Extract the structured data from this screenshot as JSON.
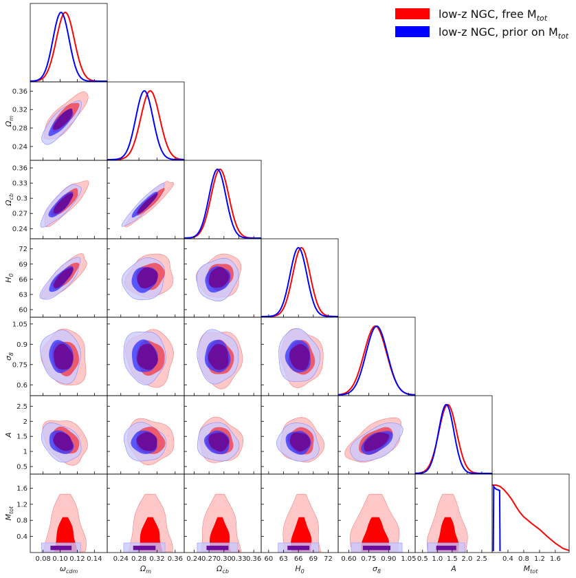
{
  "chart_data": {
    "type": "corner_plot",
    "title": "",
    "legend": {
      "placement": "top-right",
      "entries": [
        {
          "label": "low-z NGC, free M",
          "sub": "tot",
          "color": "#ff0000"
        },
        {
          "label": "low-z NGC, prior on M",
          "sub": "tot",
          "color": "#0000ff"
        }
      ]
    },
    "series": [
      {
        "name": "free_Mtot",
        "color": "#ff0000",
        "fill_outer": "#ffc8c8",
        "fill_inner": "#ff0000"
      },
      {
        "name": "prior_Mtot",
        "color": "#0000ff",
        "fill_outer": "#c8c8ff",
        "fill_inner": "#3a3aff"
      }
    ],
    "overlap_color": "#6a0d9a",
    "parameters": [
      {
        "name": "omega_cdm",
        "label": "ω",
        "sub": "cdm",
        "range": [
          0.065,
          0.155
        ],
        "ticks": [
          {
            "v": 0.08,
            "t": "0.08"
          },
          {
            "v": 0.1,
            "t": "0.10"
          },
          {
            "v": 0.12,
            "t": "0.12"
          },
          {
            "v": 0.14,
            "t": "0.14"
          }
        ],
        "mean_free": 0.106,
        "sd_free": 0.0105,
        "mean_prior": 0.101,
        "sd_prior": 0.0095
      },
      {
        "name": "Omega_m",
        "label": "Ω",
        "sub": "m",
        "range": [
          0.21,
          0.38
        ],
        "ticks": [
          {
            "v": 0.24,
            "t": "0.24"
          },
          {
            "v": 0.28,
            "t": "0.28"
          },
          {
            "v": 0.32,
            "t": "0.32"
          },
          {
            "v": 0.36,
            "t": "0.36"
          }
        ],
        "mean_free": 0.305,
        "sd_free": 0.021,
        "mean_prior": 0.292,
        "sd_prior": 0.019
      },
      {
        "name": "Omega_cb",
        "label": "Ω",
        "sub": "cb",
        "range": [
          0.22,
          0.375
        ],
        "ticks": [
          {
            "v": 0.24,
            "t": "0.24"
          },
          {
            "v": 0.27,
            "t": "0.27"
          },
          {
            "v": 0.3,
            "t": "0.30"
          },
          {
            "v": 0.33,
            "t": "0.33"
          },
          {
            "v": 0.36,
            "t": "0.36"
          }
        ],
        "yticks": [
          {
            "v": 0.24,
            "t": "0.24"
          },
          {
            "v": 0.27,
            "t": "0.27"
          },
          {
            "v": 0.3,
            "t": "0.3"
          },
          {
            "v": 0.33,
            "t": "0.33"
          },
          {
            "v": 0.36,
            "t": "0.36"
          }
        ],
        "mean_free": 0.292,
        "sd_free": 0.018,
        "mean_prior": 0.287,
        "sd_prior": 0.017
      },
      {
        "name": "H0",
        "label": "H",
        "sub": "0",
        "range": [
          58.5,
          74.0
        ],
        "ticks": [
          {
            "v": 60,
            "t": "60"
          },
          {
            "v": 63,
            "t": "63"
          },
          {
            "v": 66,
            "t": "66"
          },
          {
            "v": 69,
            "t": "69"
          },
          {
            "v": 72,
            "t": "72"
          }
        ],
        "mean_free": 66.6,
        "sd_free": 1.75,
        "mean_prior": 66.0,
        "sd_prior": 1.7
      },
      {
        "name": "sigma8",
        "label": "σ",
        "sub": "8",
        "range": [
          0.52,
          1.1
        ],
        "ticks": [
          {
            "v": 0.6,
            "t": "0.60"
          },
          {
            "v": 0.75,
            "t": "0.75"
          },
          {
            "v": 0.9,
            "t": "0.90"
          },
          {
            "v": 1.05,
            "t": "1.05"
          }
        ],
        "yticks": [
          {
            "v": 0.6,
            "t": "0.6"
          },
          {
            "v": 0.75,
            "t": "0.75"
          },
          {
            "v": 0.9,
            "t": "0.9"
          },
          {
            "v": 1.05,
            "t": "1.05"
          }
        ],
        "mean_free": 0.8,
        "sd_free": 0.085,
        "mean_prior": 0.81,
        "sd_prior": 0.08
      },
      {
        "name": "A",
        "label": "A",
        "sub": "",
        "range": [
          0.25,
          2.85
        ],
        "ticks": [
          {
            "v": 0.5,
            "t": "0.5"
          },
          {
            "v": 1.0,
            "t": "1.0"
          },
          {
            "v": 1.5,
            "t": "1.5"
          },
          {
            "v": 2.0,
            "t": "2.0"
          },
          {
            "v": 2.5,
            "t": "2.5"
          }
        ],
        "yticks": [
          {
            "v": 0.5,
            "t": "0.5"
          },
          {
            "v": 1.0,
            "t": "1"
          },
          {
            "v": 1.5,
            "t": "1.5"
          },
          {
            "v": 2.0,
            "t": "2"
          },
          {
            "v": 2.5,
            "t": "2.5"
          }
        ],
        "mean_free": 1.35,
        "sd_free": 0.3,
        "mean_prior": 1.3,
        "sd_prior": 0.26
      },
      {
        "name": "Mtot",
        "label": "M",
        "sub": "tot",
        "range": [
          0.0,
          1.95
        ],
        "ticks": [
          {
            "v": 0.4,
            "t": "0.4"
          },
          {
            "v": 0.8,
            "t": "0.8"
          },
          {
            "v": 1.2,
            "t": "1.2"
          },
          {
            "v": 1.6,
            "t": "1.6"
          }
        ],
        "mean_free": 0.35,
        "sd_free": 0.45,
        "mean_prior": 0.12,
        "sd_prior": 0.04
      }
    ],
    "correlations": [
      [
        1,
        0.8,
        0.82,
        0.8,
        -0.1,
        -0.3,
        0.1
      ],
      [
        0.8,
        1,
        0.93,
        0.15,
        -0.05,
        -0.1,
        0.25
      ],
      [
        0.82,
        0.93,
        1,
        0.15,
        -0.05,
        -0.1,
        0.2
      ],
      [
        0.8,
        0.15,
        0.15,
        1,
        -0.05,
        -0.1,
        0.15
      ],
      [
        -0.1,
        -0.05,
        -0.05,
        -0.05,
        1,
        0.55,
        0.05
      ],
      [
        -0.3,
        -0.1,
        -0.1,
        -0.1,
        0.55,
        1,
        0.05
      ],
      [
        0.1,
        0.25,
        0.2,
        0.15,
        0.05,
        0.05,
        1
      ]
    ],
    "mtot_posterior_free": {
      "x": [
        0.0,
        0.1,
        0.2,
        0.3,
        0.4,
        0.5,
        0.6,
        0.7,
        0.8,
        0.9,
        1.0,
        1.2,
        1.4,
        1.6,
        1.8,
        1.95
      ],
      "y": [
        1.0,
        1.0,
        0.98,
        0.93,
        0.86,
        0.78,
        0.68,
        0.59,
        0.52,
        0.47,
        0.42,
        0.33,
        0.22,
        0.12,
        0.04,
        0.01
      ]
    },
    "mtot_posterior_prior": {
      "x": [
        0.03,
        0.04,
        0.06,
        0.1,
        0.14,
        0.18,
        0.19,
        0.2
      ],
      "y": [
        0.0,
        0.98,
        0.96,
        0.94,
        0.93,
        0.92,
        0.92,
        0.0
      ]
    }
  }
}
